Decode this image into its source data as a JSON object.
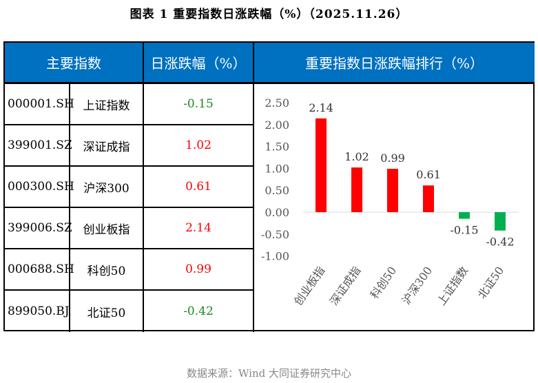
{
  "title": "图表 1  重要指数日涨跌幅（%）（2025.11.26）",
  "table": {
    "headers": [
      "主要指数",
      "日涨跌幅（%）"
    ],
    "rows": [
      {
        "code": "000001.SH",
        "name": "上证指数",
        "change": "-0.15"
      },
      {
        "code": "399001.SZ",
        "name": "深证成指",
        "change": "1.02"
      },
      {
        "code": "000300.SH",
        "name": "沪深300",
        "change": "0.61"
      },
      {
        "code": "399006.SZ",
        "name": "创业板指",
        "change": "2.14"
      },
      {
        "code": "000688.SH",
        "name": "科创50",
        "change": "0.99"
      },
      {
        "code": "899050.BJ",
        "name": "北证50",
        "change": "-0.42"
      }
    ]
  },
  "colors": {
    "header": "#0070c0",
    "up": "#ff0000",
    "down": "#00b050",
    "down_text": "#1a8a1a"
  },
  "chart_data": {
    "type": "bar",
    "title": "重要指数日涨跌幅排行（%）",
    "categories": [
      "创业板指",
      "深证成指",
      "科创50",
      "沪深300",
      "上证指数",
      "北证50"
    ],
    "values": [
      2.14,
      1.02,
      0.99,
      0.61,
      -0.15,
      -0.42
    ],
    "data_labels": [
      "2.14",
      "1.02",
      "0.99",
      "0.61",
      "-0.15",
      "-0.42"
    ],
    "yticks": [
      "2.50",
      "2.00",
      "1.50",
      "1.00",
      "0.50",
      "0.00",
      "-0.50",
      "-1.00"
    ],
    "ylim": [
      -1.0,
      2.5
    ],
    "grid": false
  },
  "source": "数据来源：Wind  大同证券研究中心"
}
